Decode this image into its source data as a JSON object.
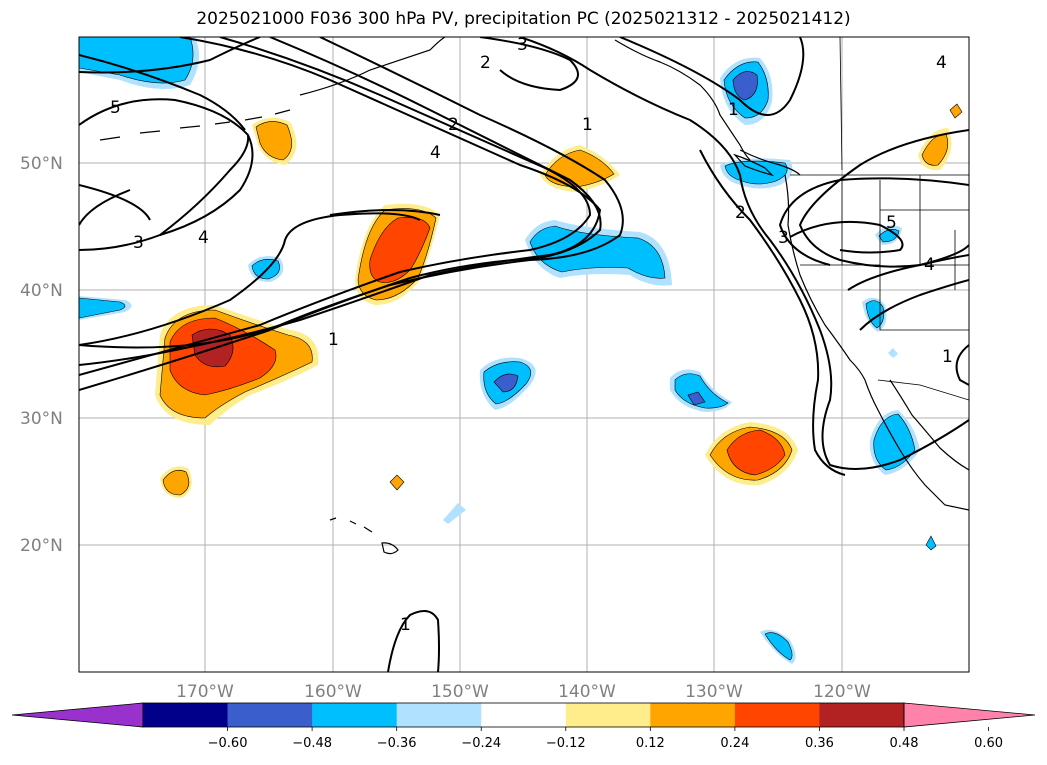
{
  "title": "2025021000 F036 300 hPa PV, precipitation PC (2025021312 - 2025021412)",
  "lat_ticks": [
    "50°N",
    "40°N",
    "30°N",
    "20°N"
  ],
  "lon_ticks": [
    "170°W",
    "160°W",
    "150°W",
    "140°W",
    "130°W",
    "120°W"
  ],
  "colorbar": {
    "colors": [
      "#9932cc",
      "#00008b",
      "#3a5fcd",
      "#00bfff",
      "#b0e2ff",
      "#ffffff",
      "#ffec8b",
      "#ffa500",
      "#ff4500",
      "#b22222",
      "#ff82ab"
    ],
    "labels": [
      "−0.60",
      "−0.48",
      "−0.36",
      "−0.24",
      "−0.12",
      "0.12",
      "0.24",
      "0.36",
      "0.48",
      "0.60"
    ]
  },
  "contour_labels": [
    "5",
    "3",
    "4",
    "2",
    "3",
    "1",
    "2",
    "4",
    "1",
    "2",
    "3",
    "5",
    "4",
    "1",
    "1",
    "1",
    "4"
  ]
}
